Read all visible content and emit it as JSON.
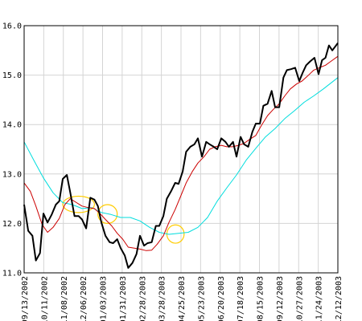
{
  "chart_data": {
    "type": "line",
    "title": "",
    "xlabel": "",
    "ylabel": "",
    "ylim": [
      11.0,
      16.0
    ],
    "yticks": [
      "11.0",
      "12.0",
      "13.0",
      "14.0",
      "15.0",
      "16.0"
    ],
    "xticks": [
      "09/13/2002",
      "10/11/2002",
      "11/08/2002",
      "12/06/2002",
      "01/03/2003",
      "01/31/2003",
      "02/28/2003",
      "03/28/2003",
      "04/25/2003",
      "05/23/2003",
      "06/20/2003",
      "07/18/2003",
      "08/15/2003",
      "09/12/2003",
      "10/27/2003",
      "11/24/2003",
      "12/12/2003"
    ],
    "xlim": [
      "2002-09-13",
      "2003-12-12"
    ],
    "grid": true,
    "series": [
      {
        "color": "#000000",
        "points": [
          [
            "2002-09-13",
            12.38
          ],
          [
            "2002-09-19",
            11.85
          ],
          [
            "2002-09-25",
            11.75
          ],
          [
            "2002-09-30",
            11.25
          ],
          [
            "2002-10-06",
            11.4
          ],
          [
            "2002-10-11",
            12.2
          ],
          [
            "2002-10-17",
            12.02
          ],
          [
            "2002-10-23",
            12.18
          ],
          [
            "2002-10-29",
            12.38
          ],
          [
            "2002-11-03",
            12.45
          ],
          [
            "2002-11-08",
            12.9
          ],
          [
            "2002-11-14",
            12.98
          ],
          [
            "2002-11-19",
            12.62
          ],
          [
            "2002-11-25",
            12.15
          ],
          [
            "2002-12-01",
            12.15
          ],
          [
            "2002-12-06",
            12.08
          ],
          [
            "2002-12-12",
            11.9
          ],
          [
            "2002-12-18",
            12.52
          ],
          [
            "2002-12-24",
            12.48
          ],
          [
            "2002-12-29",
            12.35
          ],
          [
            "2003-01-03",
            12.02
          ],
          [
            "2003-01-09",
            11.75
          ],
          [
            "2003-01-15",
            11.62
          ],
          [
            "2003-01-20",
            11.6
          ],
          [
            "2003-01-26",
            11.68
          ],
          [
            "2003-01-31",
            11.5
          ],
          [
            "2003-02-06",
            11.35
          ],
          [
            "2003-02-11",
            11.1
          ],
          [
            "2003-02-17",
            11.2
          ],
          [
            "2003-02-23",
            11.38
          ],
          [
            "2003-02-28",
            11.75
          ],
          [
            "2003-03-06",
            11.55
          ],
          [
            "2003-03-11",
            11.6
          ],
          [
            "2003-03-17",
            11.62
          ],
          [
            "2003-03-23",
            11.95
          ],
          [
            "2003-03-28",
            11.95
          ],
          [
            "2003-04-03",
            12.15
          ],
          [
            "2003-04-08",
            12.5
          ],
          [
            "2003-04-14",
            12.65
          ],
          [
            "2003-04-20",
            12.82
          ],
          [
            "2003-04-25",
            12.8
          ],
          [
            "2003-05-01",
            13.05
          ],
          [
            "2003-05-06",
            13.45
          ],
          [
            "2003-05-12",
            13.55
          ],
          [
            "2003-05-18",
            13.6
          ],
          [
            "2003-05-23",
            13.72
          ],
          [
            "2003-05-29",
            13.35
          ],
          [
            "2003-06-04",
            13.65
          ],
          [
            "2003-06-09",
            13.6
          ],
          [
            "2003-06-15",
            13.55
          ],
          [
            "2003-06-20",
            13.5
          ],
          [
            "2003-06-26",
            13.72
          ],
          [
            "2003-07-02",
            13.65
          ],
          [
            "2003-07-07",
            13.55
          ],
          [
            "2003-07-13",
            13.65
          ],
          [
            "2003-07-18",
            13.35
          ],
          [
            "2003-07-24",
            13.75
          ],
          [
            "2003-07-29",
            13.6
          ],
          [
            "2003-08-04",
            13.55
          ],
          [
            "2003-08-10",
            13.85
          ],
          [
            "2003-08-15",
            14.02
          ],
          [
            "2003-08-21",
            14.02
          ],
          [
            "2003-08-26",
            14.38
          ],
          [
            "2003-09-01",
            14.42
          ],
          [
            "2003-09-07",
            14.68
          ],
          [
            "2003-09-12",
            14.35
          ],
          [
            "2003-09-18",
            14.35
          ],
          [
            "2003-09-24",
            14.95
          ],
          [
            "2003-09-29",
            15.1
          ],
          [
            "2003-10-05",
            15.12
          ],
          [
            "2003-10-11",
            15.15
          ],
          [
            "2003-10-17",
            14.88
          ],
          [
            "2003-10-22",
            15.05
          ],
          [
            "2003-10-27",
            15.2
          ],
          [
            "2003-11-02",
            15.28
          ],
          [
            "2003-11-08",
            15.35
          ],
          [
            "2003-11-14",
            15.02
          ],
          [
            "2003-11-19",
            15.3
          ],
          [
            "2003-11-24",
            15.35
          ],
          [
            "2003-11-29",
            15.6
          ],
          [
            "2003-12-04",
            15.5
          ],
          [
            "2003-12-12",
            15.65
          ]
        ]
      },
      {
        "color": "#cc0000",
        "points": [
          [
            "2002-09-13",
            12.82
          ],
          [
            "2002-09-22",
            12.65
          ],
          [
            "2002-09-30",
            12.35
          ],
          [
            "2002-10-09",
            11.98
          ],
          [
            "2002-10-17",
            11.82
          ],
          [
            "2002-10-25",
            11.92
          ],
          [
            "2002-11-03",
            12.1
          ],
          [
            "2002-11-11",
            12.38
          ],
          [
            "2002-11-19",
            12.5
          ],
          [
            "2002-11-28",
            12.42
          ],
          [
            "2002-12-06",
            12.35
          ],
          [
            "2002-12-15",
            12.32
          ],
          [
            "2002-12-24",
            12.3
          ],
          [
            "2003-01-01",
            12.2
          ],
          [
            "2003-01-09",
            12.08
          ],
          [
            "2003-01-18",
            11.95
          ],
          [
            "2003-01-26",
            11.8
          ],
          [
            "2003-02-03",
            11.68
          ],
          [
            "2003-02-11",
            11.52
          ],
          [
            "2003-02-20",
            11.5
          ],
          [
            "2003-02-28",
            11.48
          ],
          [
            "2003-03-09",
            11.45
          ],
          [
            "2003-03-17",
            11.46
          ],
          [
            "2003-03-25",
            11.58
          ],
          [
            "2003-04-03",
            11.75
          ],
          [
            "2003-04-11",
            12.02
          ],
          [
            "2003-04-20",
            12.28
          ],
          [
            "2003-04-28",
            12.55
          ],
          [
            "2003-05-06",
            12.82
          ],
          [
            "2003-05-15",
            13.05
          ],
          [
            "2003-05-23",
            13.22
          ],
          [
            "2003-06-01",
            13.35
          ],
          [
            "2003-06-09",
            13.5
          ],
          [
            "2003-06-17",
            13.55
          ],
          [
            "2003-06-26",
            13.58
          ],
          [
            "2003-07-04",
            13.55
          ],
          [
            "2003-07-12",
            13.55
          ],
          [
            "2003-07-21",
            13.58
          ],
          [
            "2003-07-29",
            13.62
          ],
          [
            "2003-08-06",
            13.7
          ],
          [
            "2003-08-15",
            13.78
          ],
          [
            "2003-08-23",
            13.98
          ],
          [
            "2003-09-01",
            14.18
          ],
          [
            "2003-09-09",
            14.3
          ],
          [
            "2003-09-18",
            14.42
          ],
          [
            "2003-09-26",
            14.58
          ],
          [
            "2003-10-04",
            14.72
          ],
          [
            "2003-10-13",
            14.82
          ],
          [
            "2003-10-21",
            14.88
          ],
          [
            "2003-10-29",
            14.98
          ],
          [
            "2003-11-07",
            15.1
          ],
          [
            "2003-11-15",
            15.15
          ],
          [
            "2003-11-24",
            15.2
          ],
          [
            "2003-12-02",
            15.28
          ],
          [
            "2003-12-12",
            15.38
          ]
        ]
      },
      {
        "color": "#00dddd",
        "points": [
          [
            "2002-09-13",
            13.65
          ],
          [
            "2002-09-27",
            13.28
          ],
          [
            "2002-10-11",
            12.92
          ],
          [
            "2002-10-25",
            12.62
          ],
          [
            "2002-11-08",
            12.42
          ],
          [
            "2002-11-22",
            12.38
          ],
          [
            "2002-12-06",
            12.3
          ],
          [
            "2002-12-20",
            12.32
          ],
          [
            "2003-01-03",
            12.22
          ],
          [
            "2003-01-17",
            12.18
          ],
          [
            "2003-01-31",
            12.12
          ],
          [
            "2003-02-14",
            12.12
          ],
          [
            "2003-02-28",
            12.05
          ],
          [
            "2003-03-14",
            11.92
          ],
          [
            "2003-03-28",
            11.82
          ],
          [
            "2003-04-11",
            11.78
          ],
          [
            "2003-04-25",
            11.8
          ],
          [
            "2003-05-09",
            11.82
          ],
          [
            "2003-05-23",
            11.92
          ],
          [
            "2003-06-06",
            12.12
          ],
          [
            "2003-06-20",
            12.45
          ],
          [
            "2003-07-04",
            12.72
          ],
          [
            "2003-07-18",
            12.98
          ],
          [
            "2003-08-01",
            13.28
          ],
          [
            "2003-08-15",
            13.52
          ],
          [
            "2003-08-29",
            13.75
          ],
          [
            "2003-09-12",
            13.92
          ],
          [
            "2003-09-26",
            14.12
          ],
          [
            "2003-10-10",
            14.28
          ],
          [
            "2003-10-24",
            14.45
          ],
          [
            "2003-11-07",
            14.58
          ],
          [
            "2003-11-21",
            14.72
          ],
          [
            "2003-12-12",
            14.95
          ]
        ]
      }
    ],
    "annotations": [
      {
        "shape": "ellipse",
        "color": "#ffcc00",
        "x_from": "2002-11-08",
        "x_to": "2002-12-24",
        "y_from": 12.22,
        "y_to": 12.55
      },
      {
        "shape": "ellipse",
        "color": "#ffcc00",
        "x_from": "2002-12-29",
        "x_to": "2003-01-26",
        "y_from": 12.0,
        "y_to": 12.38
      },
      {
        "shape": "ellipse",
        "color": "#ffcc00",
        "x_from": "2003-04-08",
        "x_to": "2003-05-03",
        "y_from": 11.6,
        "y_to": 11.97
      }
    ]
  }
}
